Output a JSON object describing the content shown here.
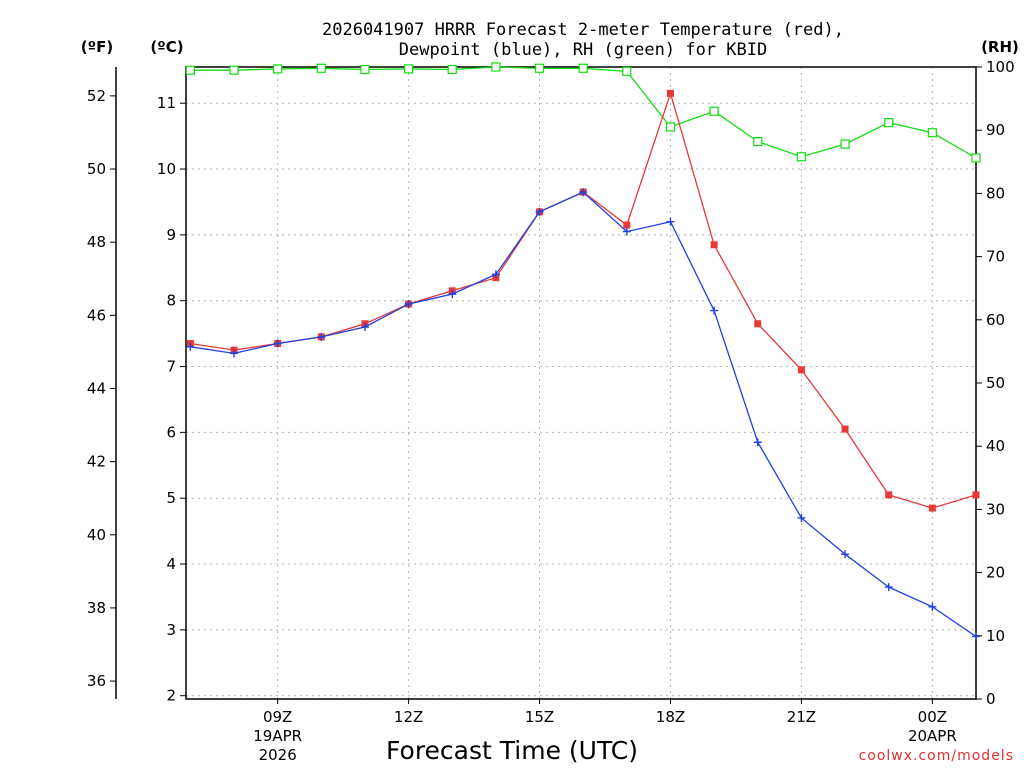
{
  "chart_data": {
    "type": "line",
    "title_lines": [
      "2026041907 HRRR Forecast 2-meter Temperature (red),",
      "Dewpoint (blue), RH (green) for KBID"
    ],
    "xlabel": "Forecast Time (UTC)",
    "credit": "coolwx.com/models",
    "units": {
      "fahrenheit": "(ºF)",
      "celsius": "(ºC)",
      "rh": "(RH)"
    },
    "x_hours": [
      7,
      8,
      9,
      10,
      11,
      12,
      13,
      14,
      15,
      16,
      17,
      18,
      19,
      20,
      21,
      22,
      23,
      24,
      25
    ],
    "x_range": [
      6.9,
      25
    ],
    "x_ticks": [
      {
        "hour": 9,
        "label": "09Z",
        "sub1": "19APR",
        "sub2": "2026"
      },
      {
        "hour": 12,
        "label": "12Z",
        "sub1": "",
        "sub2": ""
      },
      {
        "hour": 15,
        "label": "15Z",
        "sub1": "",
        "sub2": ""
      },
      {
        "hour": 18,
        "label": "18Z",
        "sub1": "",
        "sub2": ""
      },
      {
        "hour": 21,
        "label": "21Z",
        "sub1": "",
        "sub2": ""
      },
      {
        "hour": 24,
        "label": "00Z",
        "sub1": "20APR",
        "sub2": ""
      }
    ],
    "celsius_range": [
      1.95,
      11.55
    ],
    "celsius_ticks": [
      "2",
      "3",
      "4",
      "5",
      "6",
      "7",
      "8",
      "9",
      "10",
      "11"
    ],
    "fahrenheit_ticks": [
      "36",
      "38",
      "40",
      "42",
      "44",
      "46",
      "48",
      "50",
      "52"
    ],
    "rh_range": [
      0,
      100
    ],
    "rh_ticks": [
      "0",
      "10",
      "20",
      "30",
      "40",
      "50",
      "60",
      "70",
      "80",
      "90",
      "100"
    ],
    "series": [
      {
        "name": "Temperature",
        "axis": "celsius",
        "color": "#e83838",
        "marker": "square",
        "values": [
          7.35,
          7.25,
          7.35,
          7.45,
          7.65,
          7.95,
          8.15,
          8.35,
          9.35,
          9.65,
          9.15,
          11.15,
          8.85,
          7.65,
          6.95,
          6.05,
          5.05,
          4.85,
          5.05
        ]
      },
      {
        "name": "Dewpoint",
        "axis": "celsius",
        "color": "#2040e0",
        "marker": "plus",
        "values": [
          7.3,
          7.2,
          7.35,
          7.45,
          7.6,
          7.95,
          8.1,
          8.4,
          9.35,
          9.65,
          9.05,
          9.2,
          7.85,
          5.85,
          4.7,
          4.15,
          3.65,
          3.35,
          2.9
        ]
      },
      {
        "name": "RH",
        "axis": "rh",
        "color": "#10dd10",
        "marker": "open-square",
        "values": [
          99.5,
          99.5,
          99.7,
          99.8,
          99.6,
          99.7,
          99.6,
          100,
          99.8,
          99.8,
          99.3,
          90.5,
          93,
          88.2,
          85.8,
          87.8,
          91.2,
          89.6,
          85.6
        ]
      }
    ]
  }
}
